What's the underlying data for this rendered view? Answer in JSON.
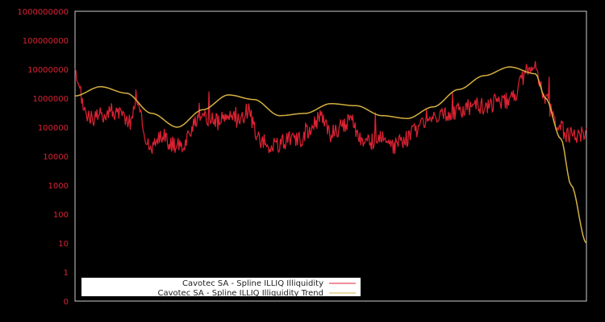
{
  "chart_data": {
    "type": "line",
    "title": "",
    "xlabel": "",
    "ylabel": "",
    "yscale": "log",
    "y_tick_labels": [
      "1000000000",
      "100000000",
      "10000000",
      "1000000",
      "100000",
      "10000",
      "1000",
      "100",
      "10",
      "1",
      "0"
    ],
    "ylim": [
      0,
      1000000000
    ],
    "grid": false,
    "legend_position": "lower-left",
    "colors": {
      "background": "#000000",
      "axis": "#cccccc",
      "tick_text": "#dd2233",
      "series_illiquidity": "#dd2233",
      "series_trend": "#d4b040"
    },
    "series": [
      {
        "name": "Cavotec SA - Spline ILLIQ Illiquidity",
        "color": "#dd2233",
        "x": [
          0,
          0.01,
          0.02,
          0.03,
          0.05,
          0.07,
          0.09,
          0.1,
          0.11,
          0.12,
          0.13,
          0.14,
          0.15,
          0.17,
          0.19,
          0.21,
          0.23,
          0.25,
          0.27,
          0.28,
          0.3,
          0.32,
          0.34,
          0.35,
          0.36,
          0.38,
          0.4,
          0.42,
          0.44,
          0.46,
          0.48,
          0.5,
          0.52,
          0.54,
          0.56,
          0.58,
          0.6,
          0.62,
          0.64,
          0.66,
          0.68,
          0.7,
          0.72,
          0.74,
          0.76,
          0.78,
          0.8,
          0.82,
          0.84,
          0.86,
          0.88,
          0.9,
          0.92,
          0.94,
          0.96,
          0.98,
          1.0
        ],
        "values": [
          6000000,
          1500000,
          350000,
          180000,
          250000,
          400000,
          250000,
          200000,
          150000,
          1500000,
          200000,
          30000,
          18000,
          50000,
          25000,
          20000,
          120000,
          180000,
          200000,
          150000,
          250000,
          180000,
          400000,
          100000,
          40000,
          20000,
          25000,
          40000,
          35000,
          80000,
          250000,
          60000,
          100000,
          180000,
          35000,
          30000,
          40000,
          20000,
          30000,
          60000,
          150000,
          180000,
          250000,
          350000,
          400000,
          600000,
          500000,
          700000,
          800000,
          1000000,
          8000000,
          10000000,
          1000000,
          150000,
          60000,
          50000,
          80000
        ]
      },
      {
        "name": "Cavotec SA - Spline ILLIQ Illiquidity Trend",
        "color": "#d4b040",
        "x": [
          0,
          0.05,
          0.1,
          0.15,
          0.2,
          0.25,
          0.3,
          0.35,
          0.4,
          0.45,
          0.5,
          0.55,
          0.6,
          0.65,
          0.7,
          0.75,
          0.8,
          0.85,
          0.9,
          0.92,
          0.95,
          0.97,
          1.0
        ],
        "values": [
          1200000,
          2500000,
          1500000,
          300000,
          100000,
          400000,
          1300000,
          900000,
          250000,
          300000,
          650000,
          550000,
          250000,
          200000,
          500000,
          2000000,
          6000000,
          12000000,
          7000000,
          1000000,
          40000,
          1000,
          10
        ]
      }
    ]
  },
  "legend": {
    "items": [
      {
        "label": "Cavotec SA - Spline ILLIQ Illiquidity",
        "color": "#dd2233"
      },
      {
        "label": "Cavotec SA - Spline ILLIQ Illiquidity Trend",
        "color": "#d4b040"
      }
    ]
  }
}
